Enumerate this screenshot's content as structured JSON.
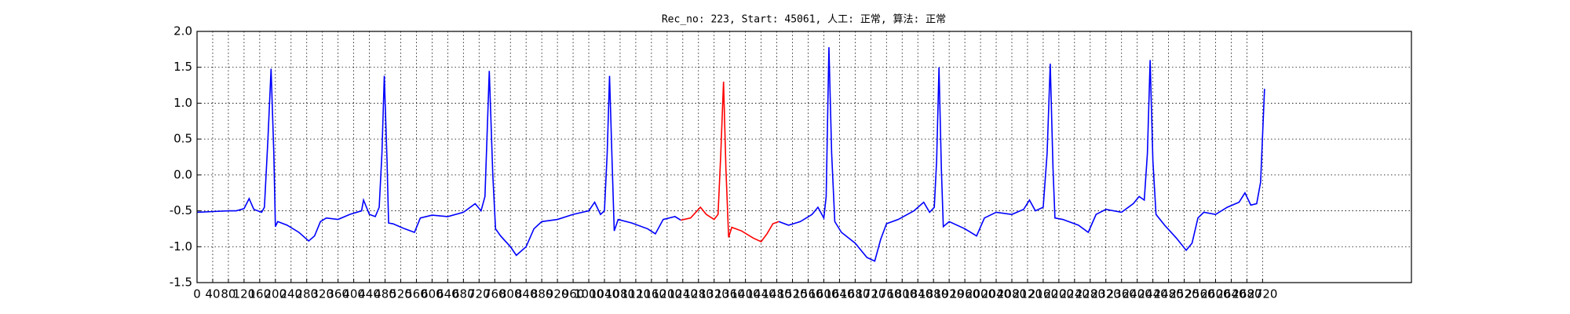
{
  "chart_data": {
    "type": "line",
    "title": "Rec_no: 223, Start: 45061, 人工: 正常, 算法: 正常",
    "xlim": [
      0,
      3100
    ],
    "ylim": [
      -1.5,
      2.0
    ],
    "xticks": [
      0,
      40,
      80,
      120,
      160,
      200,
      240,
      280,
      320,
      360,
      400,
      440,
      480,
      520,
      560,
      600,
      640,
      680,
      720,
      760,
      800,
      840,
      880,
      920,
      960,
      1000,
      1040,
      1080,
      1120,
      1160,
      1200,
      1240,
      1280,
      1320,
      1360,
      1400,
      1440,
      1480,
      1520,
      1560,
      1600,
      1640,
      1680,
      1720,
      1760,
      1800,
      1840,
      1880,
      1920,
      1960,
      2000,
      2040,
      2080,
      2120,
      2160,
      2200,
      2240,
      2280,
      2320,
      2360,
      2400,
      2440,
      2480,
      2520,
      2560,
      2600,
      2640,
      2680,
      2720
    ],
    "yticks": [
      -1.5,
      {
        "value": -1.0,
        "label": "-1.0"
      },
      -0.5,
      {
        "value": 0.0,
        "label": "0.0"
      },
      0.5,
      {
        "value": 1.0,
        "label": "1.0"
      },
      1.5,
      {
        "value": 2.0,
        "label": "2.0"
      }
    ],
    "grid": true,
    "series": [
      {
        "color": "#0000ff",
        "x": [
          0,
          40,
          80,
          100,
          120,
          133,
          145,
          165,
          172,
          181,
          189,
          196,
          200,
          206,
          230,
          260,
          285,
          300,
          315,
          330,
          360,
          390,
          420,
          425,
          440,
          455,
          465,
          472,
          478,
          485,
          489,
          500,
          530,
          555,
          570,
          600,
          640,
          680,
          710,
          725,
          735,
          746,
          755,
          762,
          775,
          800,
          815,
          840,
          860,
          880,
          920,
          960,
          1000,
          1015,
          1030,
          1040,
          1047,
          1053,
          1060,
          1065,
          1075,
          1110,
          1150,
          1170,
          1190,
          1220,
          1235,
          1360,
          1485,
          1510,
          1540,
          1570,
          1585,
          1600,
          1606,
          1613,
          1620,
          1628,
          1645,
          1680,
          1710,
          1730,
          1745,
          1760,
          1790,
          1830,
          1855,
          1870,
          1882,
          1888,
          1894,
          1900,
          1905,
          1920,
          1960,
          1990,
          2010,
          2040,
          2080,
          2110,
          2125,
          2140,
          2160,
          2170,
          2178,
          2185,
          2190,
          2210,
          2250,
          2275,
          2295,
          2320,
          2360,
          2390,
          2405,
          2418,
          2426,
          2433,
          2440,
          2448,
          2470,
          2500,
          2525,
          2540,
          2555,
          2570,
          2600,
          2630,
          2660,
          2675,
          2690,
          2705,
          2715,
          2725
        ],
        "values": [
          -0.52,
          -0.51,
          -0.5,
          -0.5,
          -0.47,
          -0.33,
          -0.48,
          -0.52,
          -0.45,
          0.5,
          1.48,
          0.3,
          -0.72,
          -0.65,
          -0.7,
          -0.8,
          -0.92,
          -0.85,
          -0.65,
          -0.6,
          -0.62,
          -0.55,
          -0.5,
          -0.35,
          -0.55,
          -0.58,
          -0.45,
          0.3,
          1.38,
          0.2,
          -0.67,
          -0.68,
          -0.75,
          -0.8,
          -0.6,
          -0.56,
          -0.58,
          -0.52,
          -0.4,
          -0.5,
          -0.3,
          1.45,
          0.0,
          -0.75,
          -0.85,
          -1.0,
          -1.12,
          -1.0,
          -0.75,
          -0.65,
          -0.62,
          -0.55,
          -0.5,
          -0.38,
          -0.55,
          -0.5,
          0.3,
          1.38,
          0.1,
          -0.78,
          -0.62,
          -0.67,
          -0.75,
          -0.82,
          -0.62,
          -0.58,
          -0.63,
          null,
          -0.65,
          -0.7,
          -0.65,
          -0.55,
          -0.45,
          -0.6,
          -0.3,
          1.78,
          0.3,
          -0.65,
          -0.8,
          -0.95,
          -1.15,
          -1.2,
          -0.9,
          -0.68,
          -0.62,
          -0.5,
          -0.38,
          -0.52,
          -0.45,
          0.2,
          1.5,
          0.1,
          -0.72,
          -0.65,
          -0.75,
          -0.85,
          -0.6,
          -0.52,
          -0.55,
          -0.48,
          -0.35,
          -0.5,
          -0.45,
          0.3,
          1.55,
          0.1,
          -0.6,
          -0.62,
          -0.7,
          -0.8,
          -0.55,
          -0.48,
          -0.52,
          -0.4,
          -0.3,
          -0.35,
          0.3,
          1.6,
          0.2,
          -0.55,
          -0.7,
          -0.88,
          -1.05,
          -0.95,
          -0.6,
          -0.52,
          -0.55,
          -0.45,
          -0.38,
          -0.25,
          -0.42,
          -0.4,
          -0.1,
          1.2
        ]
      },
      {
        "color": "#ff0000",
        "x": [
          1235,
          1260,
          1285,
          1300,
          1320,
          1330,
          1337,
          1344,
          1350,
          1357,
          1365,
          1390,
          1420,
          1440,
          1455,
          1470,
          1485
        ],
        "values": [
          -0.63,
          -0.6,
          -0.45,
          -0.55,
          -0.62,
          -0.55,
          0.3,
          1.3,
          0.1,
          -0.87,
          -0.73,
          -0.78,
          -0.88,
          -0.93,
          -0.82,
          -0.68,
          -0.65
        ]
      }
    ]
  }
}
